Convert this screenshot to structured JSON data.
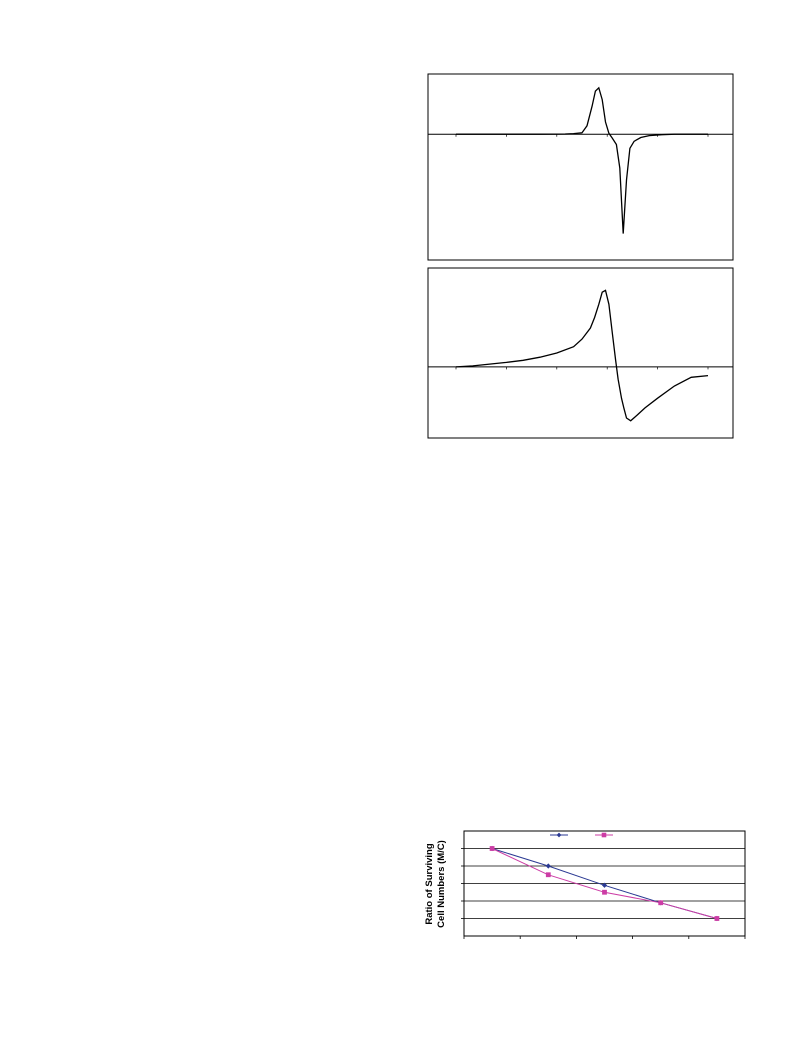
{
  "chart_data": [
    {
      "type": "line",
      "name": "epr-spectrum-narrow",
      "series": [
        {
          "points": [
            [
              0,
              0
            ],
            [
              5,
              0
            ],
            [
              10,
              0
            ],
            [
              12,
              0.003
            ],
            [
              13,
              0.005
            ],
            [
              14,
              0.012
            ],
            [
              15,
              0.03
            ],
            [
              15.6,
              0.18
            ],
            [
              16.2,
              0.6
            ],
            [
              16.6,
              0.92
            ],
            [
              17.0,
              0.99
            ],
            [
              17.4,
              0.74
            ],
            [
              17.8,
              0.26
            ],
            [
              18.2,
              0.02
            ],
            [
              18.6,
              -0.08
            ],
            [
              19.1,
              -0.22
            ],
            [
              19.5,
              -0.72
            ],
            [
              19.9,
              -2.12
            ],
            [
              20.3,
              -0.98
            ],
            [
              20.7,
              -0.3
            ],
            [
              21.2,
              -0.15
            ],
            [
              22.0,
              -0.07
            ],
            [
              23.0,
              -0.03
            ],
            [
              24.5,
              -0.01
            ],
            [
              26,
              0
            ],
            [
              28,
              0
            ],
            [
              30,
              0
            ]
          ]
        }
      ],
      "xlim": [
        0,
        30
      ],
      "ylim": [
        -2.3,
        1.2
      ],
      "grid": false
    },
    {
      "type": "line",
      "name": "epr-spectrum-broad",
      "series": [
        {
          "points": [
            [
              0,
              0
            ],
            [
              2,
              0.03
            ],
            [
              4,
              0.08
            ],
            [
              6,
              0.13
            ],
            [
              8,
              0.19
            ],
            [
              10,
              0.28
            ],
            [
              12,
              0.4
            ],
            [
              14,
              0.58
            ],
            [
              15,
              0.8
            ],
            [
              16,
              1.12
            ],
            [
              16.5,
              1.42
            ],
            [
              17,
              1.8
            ],
            [
              17.4,
              2.15
            ],
            [
              17.8,
              2.2
            ],
            [
              18.2,
              1.8
            ],
            [
              18.6,
              1.0
            ],
            [
              19.0,
              0.2
            ],
            [
              19.3,
              -0.35
            ],
            [
              19.7,
              -0.9
            ],
            [
              20.0,
              -1.2
            ],
            [
              20.3,
              -1.47
            ],
            [
              20.8,
              -1.55
            ],
            [
              21.6,
              -1.38
            ],
            [
              22.5,
              -1.18
            ],
            [
              24,
              -0.9
            ],
            [
              26,
              -0.55
            ],
            [
              28,
              -0.3
            ],
            [
              30,
              -0.25
            ]
          ]
        }
      ],
      "xlim": [
        0,
        30
      ],
      "ylim": [
        -1.7,
        2.5
      ],
      "grid": false
    },
    {
      "type": "line",
      "name": "surviving-cell-ratio",
      "x": [
        1,
        2,
        3,
        4,
        5
      ],
      "series": [
        {
          "color": "#2b3a93",
          "marker": "diamond",
          "values": [
            1.0,
            0.9,
            0.79,
            0.69,
            0.6
          ]
        },
        {
          "color": "#cc3da5",
          "marker": "square",
          "values": [
            1.0,
            0.85,
            0.75,
            0.69,
            0.6
          ]
        }
      ],
      "xlim": [
        0.5,
        5.5
      ],
      "ylim": [
        0.5,
        1.1
      ],
      "ylabel": [
        "Ratio of Surviving",
        "Cell Numbers (M/C)"
      ],
      "legend": "top-center",
      "grid": true
    }
  ]
}
